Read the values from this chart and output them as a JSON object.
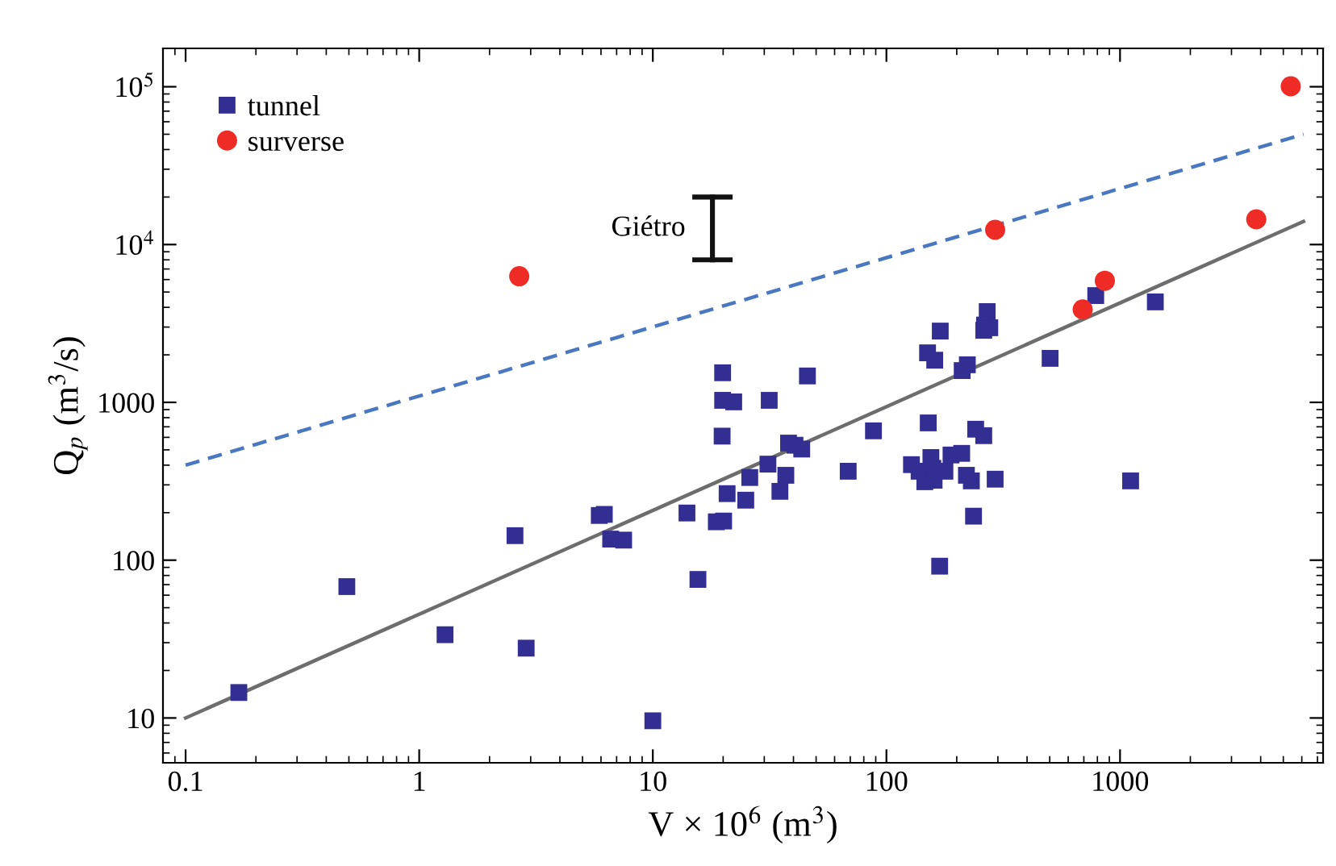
{
  "chart_data": {
    "type": "scatter",
    "xlabel": "V × 10$^{6}$ (m$^{3}$)",
    "ylabel": "Q$_{p}$ (m$^{3}$/s)",
    "log": "xy",
    "xlim": [
      0.08,
      7400
    ],
    "ylim": [
      5.2,
      175000
    ],
    "xticks": [
      0.1,
      1,
      10,
      100,
      1000
    ],
    "yticks": [
      10,
      100,
      1000,
      {
        "value": 10000,
        "label": "10$^{4}$"
      },
      {
        "value": 100000,
        "label": "10$^{5}$"
      }
    ],
    "grid": false,
    "legend": "top left",
    "annotations": [
      {
        "text": "Giétro",
        "x": 18,
        "y": 12600
      }
    ],
    "series": [
      {
        "name": "tunnel",
        "marker": "square",
        "color": "#332e92",
        "x": [
          0.169,
          0.49,
          1.29,
          2.57,
          2.87,
          10,
          5.9,
          6.2,
          6.6,
          7.5,
          14,
          15.6,
          18.7,
          20.1,
          20.8,
          19.8,
          19.9,
          22.2,
          19.9,
          31.5,
          45.9,
          38.1,
          40.6,
          43.4,
          31.1,
          26,
          37.1,
          25,
          35,
          68.6,
          88,
          170,
          150,
          161,
          222,
          211,
          270,
          263,
          277,
          261,
          502,
          787,
          1416,
          1110,
          151,
          241,
          261,
          292,
          220,
          231,
          236,
          169,
          128,
          138,
          155,
          158,
          178,
          146,
          160,
          189,
          210
        ],
        "values": [
          14.5,
          68,
          33.7,
          143,
          27.7,
          9.6,
          192,
          195,
          136,
          134,
          199,
          75.5,
          175,
          177,
          264,
          611,
          1030,
          1007,
          1540,
          1030,
          1470,
          552,
          535,
          506,
          406,
          334,
          345,
          240,
          273,
          366,
          660,
          2830,
          2060,
          1850,
          1730,
          1590,
          3760,
          3090,
          2970,
          2860,
          1900,
          4750,
          4330,
          318,
          741,
          676,
          615,
          326,
          345,
          318,
          190,
          91.6,
          403,
          366,
          447,
          382,
          366,
          314,
          321,
          464,
          475
        ]
      },
      {
        "name": "surverse",
        "marker": "circle",
        "color": "#ee2b24",
        "x": [
          2.68,
          292,
          692,
          861,
          3830,
          5380
        ],
        "values": [
          6300,
          12400,
          3880,
          5900,
          14450,
          100700
        ]
      },
      {
        "type": "line",
        "color": "#6d6d6d",
        "line_style": "solid",
        "x": [
          0.1,
          6100
        ],
        "values": [
          10,
          14000
        ]
      },
      {
        "type": "line",
        "color": "#4a78c0",
        "line_style": "dashed",
        "x": [
          0.1,
          6100
        ],
        "values": [
          400,
          50000
        ]
      },
      {
        "type": "line",
        "line_style": "solid",
        "color": "#111111",
        "x": [
          18,
          18
        ],
        "values": [
          8000,
          20000
        ]
      }
    ]
  }
}
